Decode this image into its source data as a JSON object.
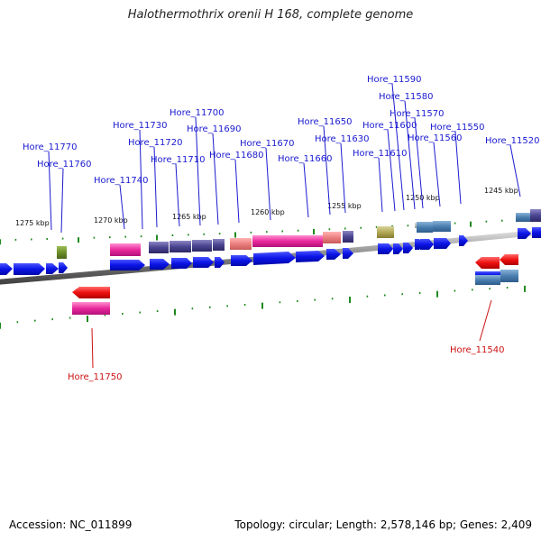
{
  "title": "Halothermothrix orenii H 168, complete genome",
  "colors": {
    "label_top": "#1a1ad0",
    "label_bottom": "#cc1111",
    "tick": "#1f8a1f",
    "cds_forward": "#0b14e6",
    "cds_reverse": "#ee1111"
  },
  "scale_labels": [
    "1275 kbp",
    "1270 kbp",
    "1265 kbp",
    "1260 kbp",
    "1255 kbp",
    "1250 kbp",
    "1245 kbp"
  ],
  "genes_top": [
    "Hore_11770",
    "Hore_11760",
    "Hore_11740",
    "Hore_11730",
    "Hore_11720",
    "Hore_11710",
    "Hore_11700",
    "Hore_11690",
    "Hore_11680",
    "Hore_11670",
    "Hore_11660",
    "Hore_11650",
    "Hore_11630",
    "Hore_11610",
    "Hore_11600",
    "Hore_11590",
    "Hore_11580",
    "Hore_11570",
    "Hore_11560",
    "Hore_11550",
    "Hore_11520"
  ],
  "genes_bottom": [
    "Hore_11750",
    "Hore_11540"
  ],
  "footer": {
    "accession": "Accession: NC_011899",
    "stats": "Topology: circular; Length: 2,578,146 bp; Genes: 2,409"
  }
}
